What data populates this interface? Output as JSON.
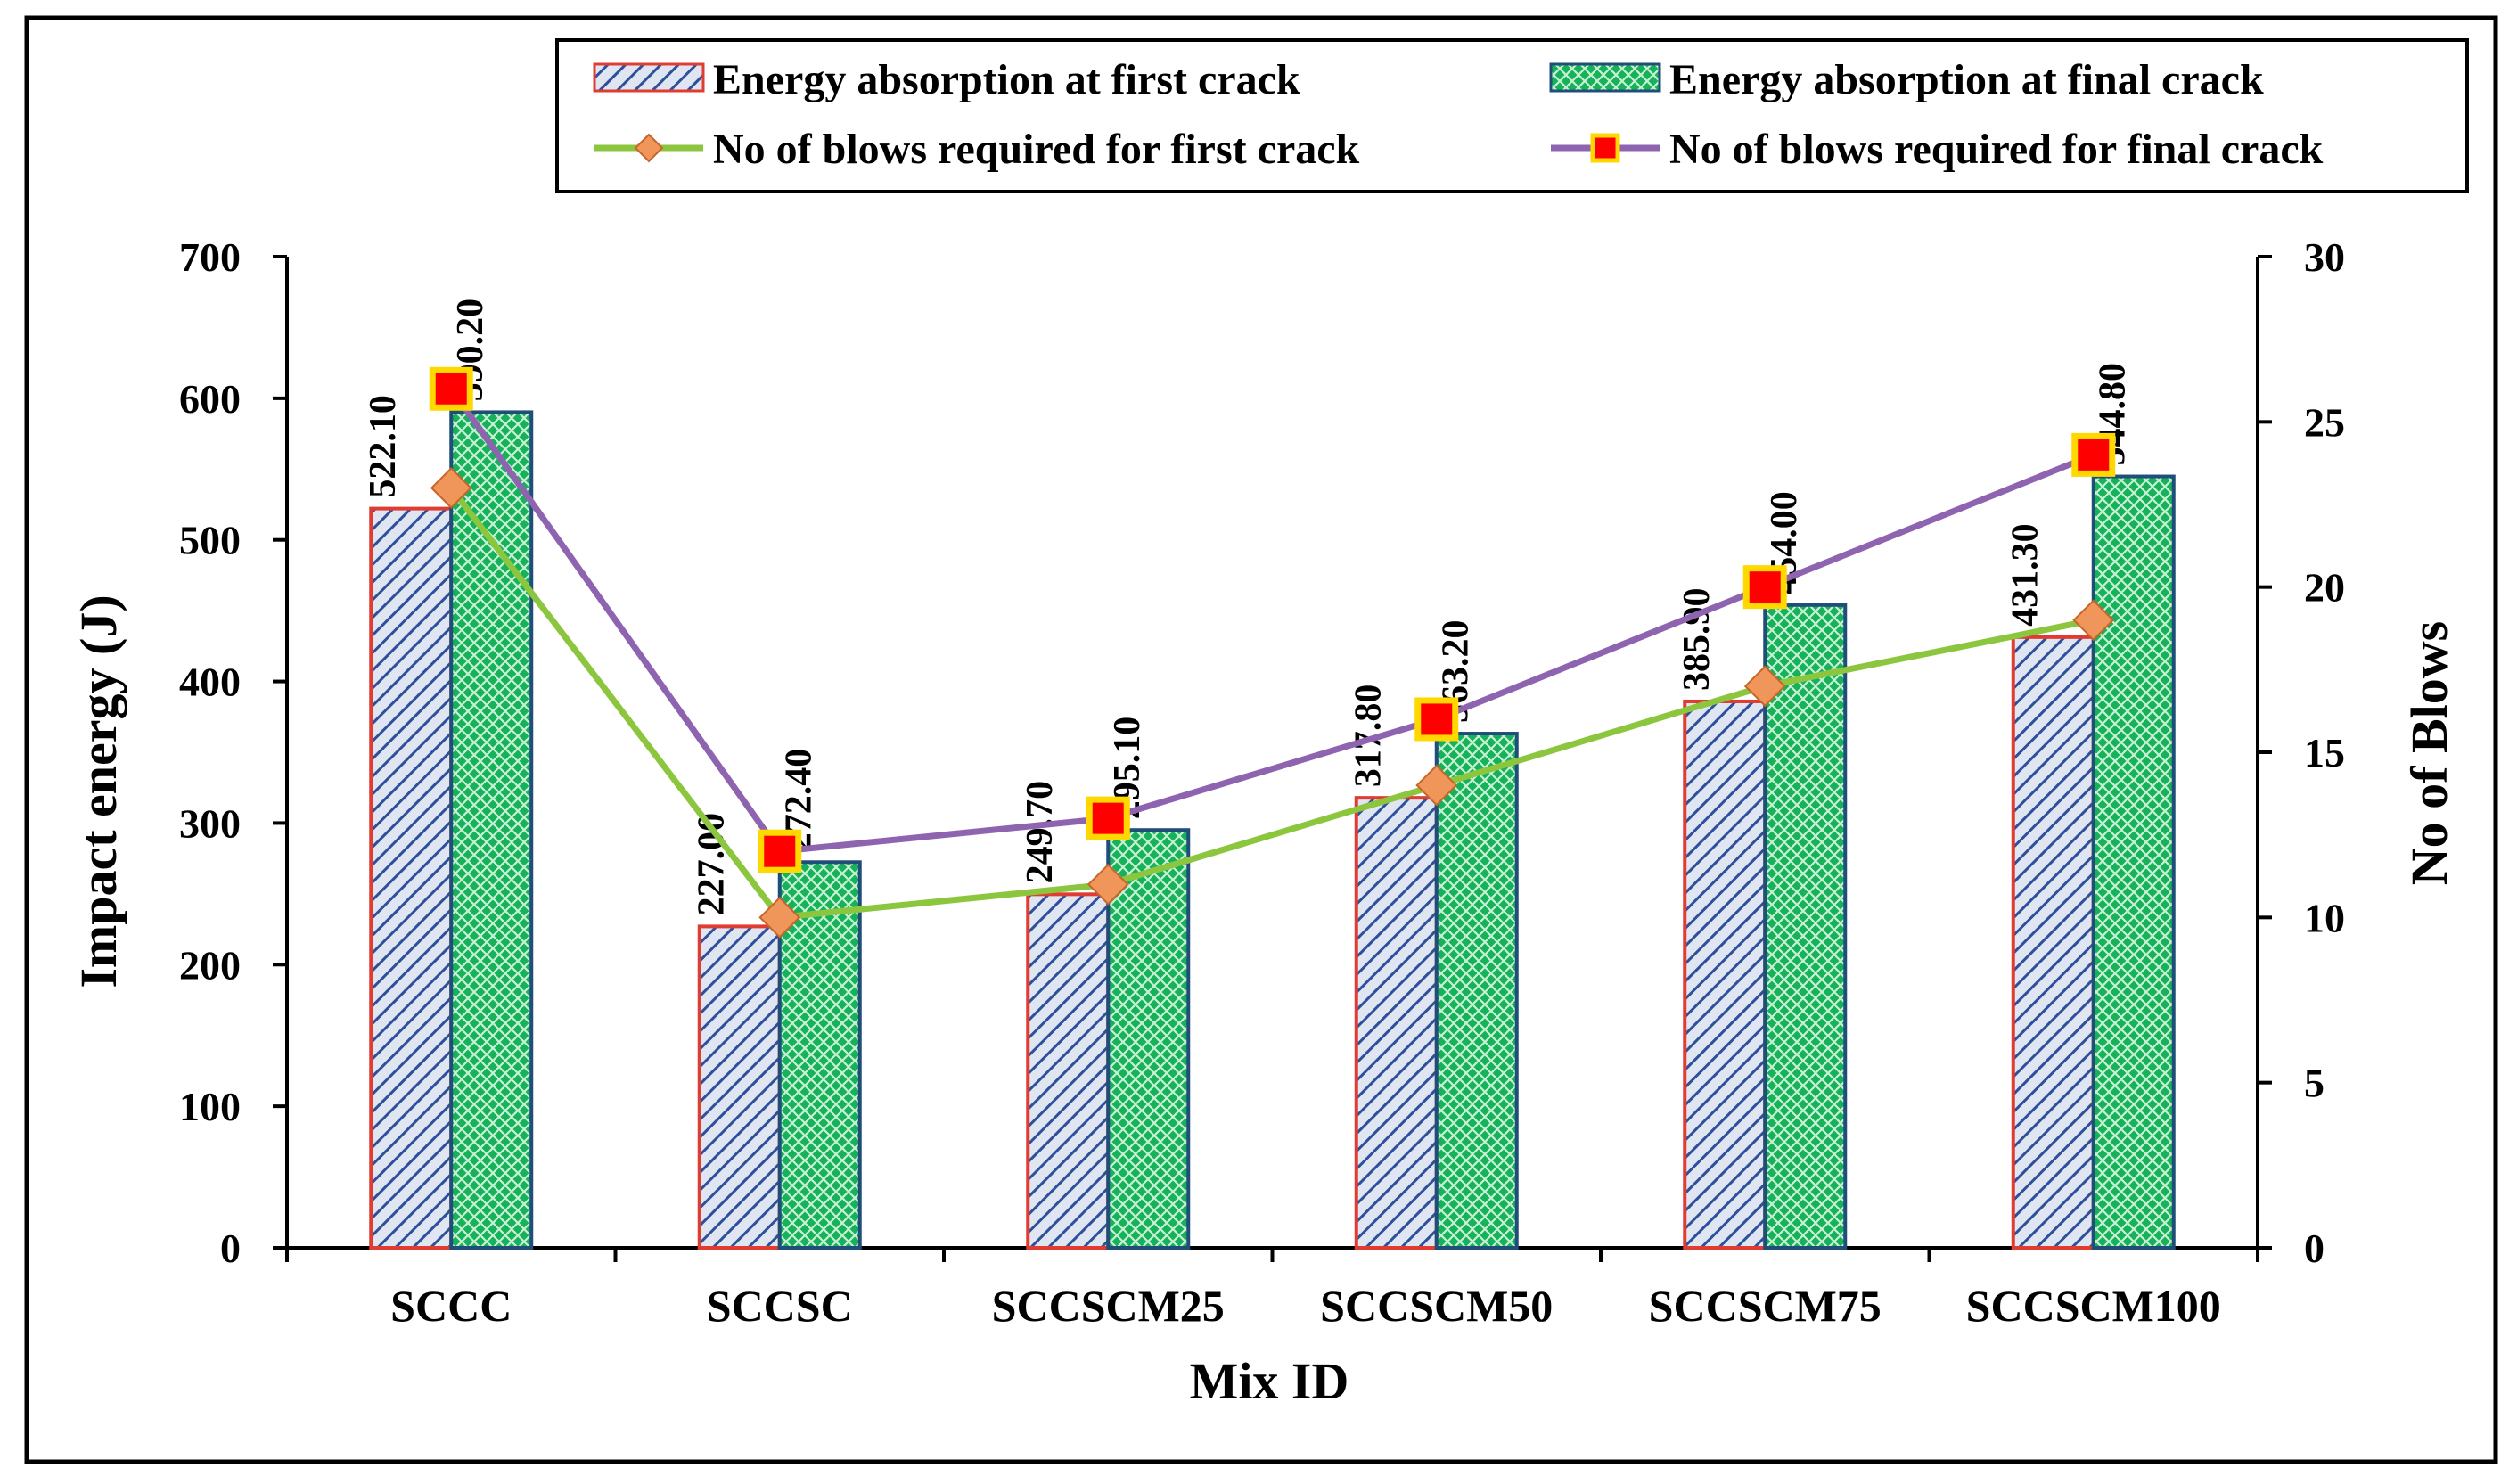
{
  "chart_data": {
    "type": "bar",
    "title": "",
    "xlabel": "Mix ID",
    "ylabel": "Impact energy (J)",
    "y2label": "No of Blows",
    "ylim": [
      0,
      700
    ],
    "y2lim": [
      0,
      30
    ],
    "yticks": [
      "0",
      "100",
      "200",
      "300",
      "400",
      "500",
      "600",
      "700"
    ],
    "y2ticks": [
      "0",
      "5",
      "10",
      "15",
      "20",
      "25",
      "30"
    ],
    "categories": [
      "SCCC",
      "SCCSC",
      "SCCSCM25",
      "SCCSCM50",
      "SCCSCM75",
      "SCCSCM100"
    ],
    "series": [
      {
        "name": "Energy absorption at first crack",
        "kind": "bar",
        "axis": "left",
        "values": [
          522.1,
          227.0,
          249.7,
          317.8,
          385.9,
          431.3
        ],
        "labels": [
          "522.10",
          "227.00",
          "249.70",
          "317.80",
          "385.90",
          "431.30"
        ],
        "color": "#e03c31",
        "fill": "#dfe6f2",
        "hatch": "#2e4f9a"
      },
      {
        "name": "Energy absorption at final crack",
        "kind": "bar",
        "axis": "left",
        "values": [
          590.2,
          272.4,
          295.1,
          363.2,
          454.0,
          544.8
        ],
        "labels": [
          "590.20",
          "272.40",
          "295.10",
          "363.20",
          "454.00",
          "544.80"
        ],
        "color": "#1f4e79",
        "fill": "#16b25a",
        "hatch": "#c8f0d4"
      },
      {
        "name": "No  of blows required for first crack",
        "kind": "line",
        "axis": "right",
        "values": [
          23,
          10,
          11,
          14,
          17,
          19
        ],
        "color": "#8cc63f",
        "marker": "diamond",
        "marker_color": "#f0965a"
      },
      {
        "name": "No  of blows required for final crack",
        "kind": "line",
        "axis": "right",
        "values": [
          26,
          12,
          13,
          16,
          20,
          24
        ],
        "color": "#8e63b0",
        "marker": "square",
        "marker_color": "#ff0000",
        "marker_edge": "#ffd800"
      }
    ],
    "legend_position": "top-right",
    "grid": false
  }
}
